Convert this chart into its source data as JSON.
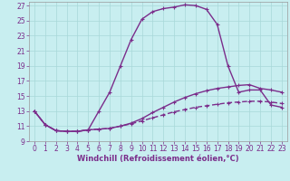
{
  "xlabel": "Windchill (Refroidissement éolien,°C)",
  "bg_color": "#c8eef0",
  "line_color": "#7b2d8b",
  "grid_color": "#a8d8d8",
  "xlim": [
    -0.5,
    23.5
  ],
  "ylim": [
    9,
    27.5
  ],
  "xticks": [
    0,
    1,
    2,
    3,
    4,
    5,
    6,
    7,
    8,
    9,
    10,
    11,
    12,
    13,
    14,
    15,
    16,
    17,
    18,
    19,
    20,
    21,
    22,
    23
  ],
  "yticks": [
    9,
    11,
    13,
    15,
    17,
    19,
    21,
    23,
    25,
    27
  ],
  "line1_x": [
    0,
    1,
    2,
    3,
    4,
    5,
    6,
    7,
    8,
    9,
    10,
    11,
    12,
    13,
    14,
    15,
    16,
    17,
    18,
    19,
    20,
    21,
    22,
    23
  ],
  "line1_y": [
    13.0,
    11.2,
    10.4,
    10.3,
    10.3,
    10.5,
    13.0,
    15.5,
    19.0,
    22.5,
    25.2,
    26.2,
    26.6,
    26.8,
    27.1,
    27.0,
    26.5,
    24.5,
    19.0,
    15.5,
    15.8,
    15.8,
    13.8,
    13.5
  ],
  "line2_x": [
    0,
    1,
    2,
    3,
    4,
    5,
    6,
    7,
    8,
    9,
    10,
    11,
    12,
    13,
    14,
    15,
    16,
    17,
    18,
    19,
    20,
    21,
    22,
    23
  ],
  "line2_y": [
    13.0,
    11.2,
    10.4,
    10.3,
    10.3,
    10.5,
    10.6,
    10.7,
    11.0,
    11.4,
    12.0,
    12.8,
    13.5,
    14.2,
    14.8,
    15.3,
    15.7,
    16.0,
    16.2,
    16.4,
    16.5,
    16.0,
    15.8,
    15.5
  ],
  "line3_x": [
    0,
    1,
    2,
    3,
    4,
    5,
    6,
    7,
    8,
    9,
    10,
    11,
    12,
    13,
    14,
    15,
    16,
    17,
    18,
    19,
    20,
    21,
    22,
    23
  ],
  "line3_y": [
    13.0,
    11.2,
    10.4,
    10.3,
    10.3,
    10.5,
    10.6,
    10.7,
    11.0,
    11.3,
    11.7,
    12.1,
    12.5,
    12.9,
    13.2,
    13.5,
    13.7,
    13.9,
    14.1,
    14.2,
    14.3,
    14.3,
    14.2,
    14.0
  ],
  "markersize": 2.5,
  "linewidth": 1.0,
  "tick_fontsize": 5.5,
  "label_fontsize": 6.0
}
